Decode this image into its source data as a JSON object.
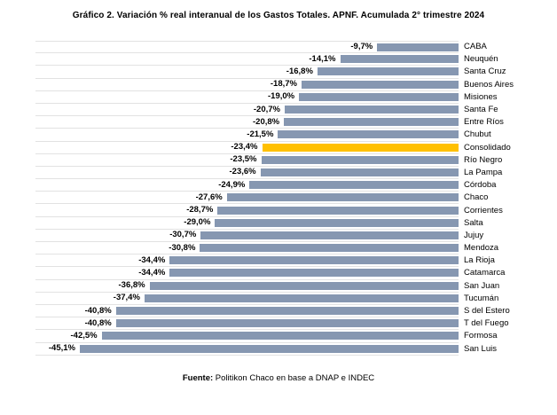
{
  "title": "Gráfico 2. Variación % real interanual de los Gastos Totales. APNF. Acumulada 2° trimestre 2024",
  "footer": {
    "source_label": "Fuente:",
    "source_text": " Politikon Chaco en base a DNAP e INDEC"
  },
  "colors": {
    "bar": "#8697B1",
    "highlight": "#FFC000",
    "gridline": "#E2E2E2",
    "text": "#000000",
    "background": "#FFFFFF"
  },
  "chart_data": {
    "type": "bar",
    "orientation": "horizontal",
    "title": "Gráfico 2. Variación % real interanual de los Gastos Totales. APNF. Acumulada 2° trimestre 2024",
    "xlabel": "",
    "ylabel": "",
    "xlim": [
      -45.1,
      0
    ],
    "grid": "row-separator-lines",
    "legend": "none",
    "value_labels_position": "left-of-bar",
    "category_labels_position": "right-of-baseline",
    "highlight_category": "Consolidado",
    "categories": [
      "CABA",
      "Neuquén",
      "Santa Cruz",
      "Buenos Aires",
      "Misiones",
      "Santa Fe",
      "Entre Ríos",
      "Chubut",
      "Consolidado",
      "Río Negro",
      "La Pampa",
      "Córdoba",
      "Chaco",
      "Corrientes",
      "Salta",
      "Jujuy",
      "Mendoza",
      "La Rioja",
      "Catamarca",
      "San Juan",
      "Tucumán",
      "S del Estero",
      "T del Fuego",
      "Formosa",
      "San Luis"
    ],
    "values": [
      -9.7,
      -14.1,
      -16.8,
      -18.7,
      -19.0,
      -20.7,
      -20.8,
      -21.5,
      -23.4,
      -23.5,
      -23.6,
      -24.9,
      -27.6,
      -28.7,
      -29.0,
      -30.7,
      -30.8,
      -34.4,
      -34.4,
      -36.8,
      -37.4,
      -40.8,
      -40.8,
      -42.5,
      -45.1
    ],
    "value_labels": [
      "-9,7%",
      "-14,1%",
      "-16,8%",
      "-18,7%",
      "-19,0%",
      "-20,7%",
      "-20,8%",
      "-21,5%",
      "-23,4%",
      "-23,5%",
      "-23,6%",
      "-24,9%",
      "-27,6%",
      "-28,7%",
      "-29,0%",
      "-30,7%",
      "-30,8%",
      "-34,4%",
      "-34,4%",
      "-36,8%",
      "-37,4%",
      "-40,8%",
      "-40,8%",
      "-42,5%",
      "-45,1%"
    ]
  }
}
